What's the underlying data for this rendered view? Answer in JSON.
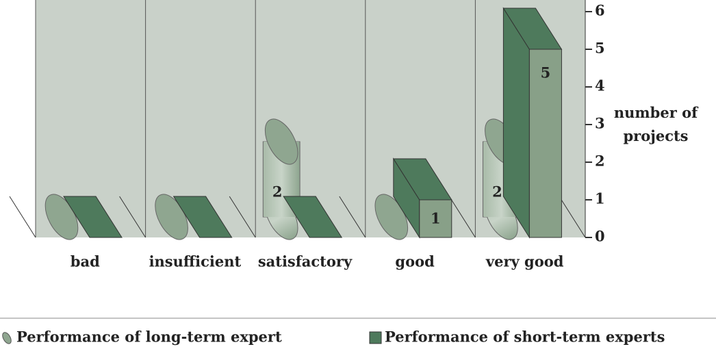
{
  "chart_data": {
    "type": "bar3d",
    "categories": [
      "bad",
      "insufficient",
      "satisfactory",
      "good",
      "very good"
    ],
    "series": [
      {
        "name": "Performance of long-term expert",
        "shape": "cylinder",
        "color": "#8fa690",
        "values": [
          0,
          0,
          2,
          0,
          2
        ]
      },
      {
        "name": "Performance of short-term experts",
        "shape": "box",
        "color": "#4e7a5c",
        "values": [
          0,
          0,
          0,
          1,
          5
        ]
      }
    ],
    "y_label": "number of projects",
    "ylim": [
      0,
      6
    ],
    "yticks": [
      0,
      1,
      2,
      3,
      4,
      5,
      6
    ],
    "y_axis_side": "right",
    "legend": "bottom"
  }
}
